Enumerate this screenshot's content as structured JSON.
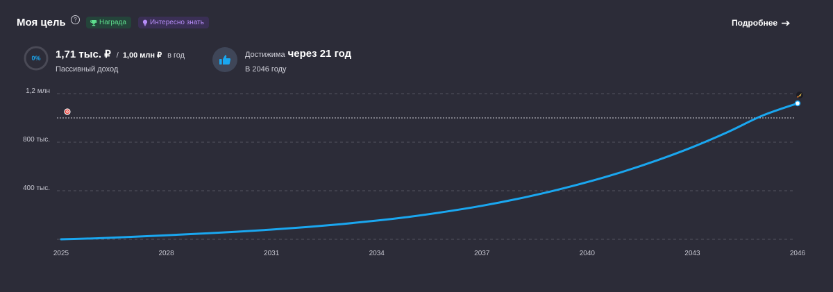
{
  "header": {
    "title": "Моя цель",
    "help_glyph": "?",
    "badges": [
      {
        "label": "Награда",
        "icon": "trophy-icon",
        "color": "#5ee08e"
      },
      {
        "label": "Интересно знать",
        "icon": "lightbulb-icon",
        "color": "#b58cf6"
      }
    ],
    "more_link": "Подробнее",
    "more_icon": "arrow-right-icon"
  },
  "stats": {
    "progress_percent": 0,
    "progress_label": "0%",
    "income_current": "1,71 тыс. ₽",
    "income_separator": "/",
    "income_target": "1,00 млн ₽",
    "income_period": "в год",
    "income_label": "Пассивный доход",
    "reach_label": "Достижима",
    "reach_value": "через 21 год",
    "reach_year": "В 2046 году",
    "reach_icon": "thumbs-up-icon"
  },
  "colors": {
    "background": "#2c2c38",
    "accent": "#1aa7f0",
    "grid": "#54545f",
    "target_line": "#cfcfd8"
  },
  "chart_data": {
    "type": "line",
    "x": [
      2025,
      2026,
      2027,
      2028,
      2029,
      2030,
      2031,
      2032,
      2033,
      2034,
      2035,
      2036,
      2037,
      2038,
      2039,
      2040,
      2041,
      2042,
      2043,
      2044,
      2045,
      2046
    ],
    "series": [
      {
        "values": [
          0,
          8000,
          20000,
          33000,
          47000,
          62000,
          80000,
          101000,
          125000,
          154000,
          188000,
          229000,
          276000,
          332000,
          397000,
          471000,
          555000,
          651000,
          759000,
          882000,
          1019000,
          1120000
        ]
      }
    ],
    "target": 1000000,
    "xticks": [
      "2025",
      "2028",
      "2031",
      "2034",
      "2037",
      "2040",
      "2043",
      "2046"
    ],
    "yticks": [
      {
        "value": 400000,
        "label": "400 тыс."
      },
      {
        "value": 800000,
        "label": "800 тыс."
      },
      {
        "value": 1200000,
        "label": "1,2 млн"
      }
    ],
    "xlim": [
      2025,
      2046
    ],
    "ylim": [
      0,
      1200000
    ],
    "grid": true,
    "markers": {
      "target_icon": "target-icon",
      "end_icon": "rocket-icon"
    }
  }
}
